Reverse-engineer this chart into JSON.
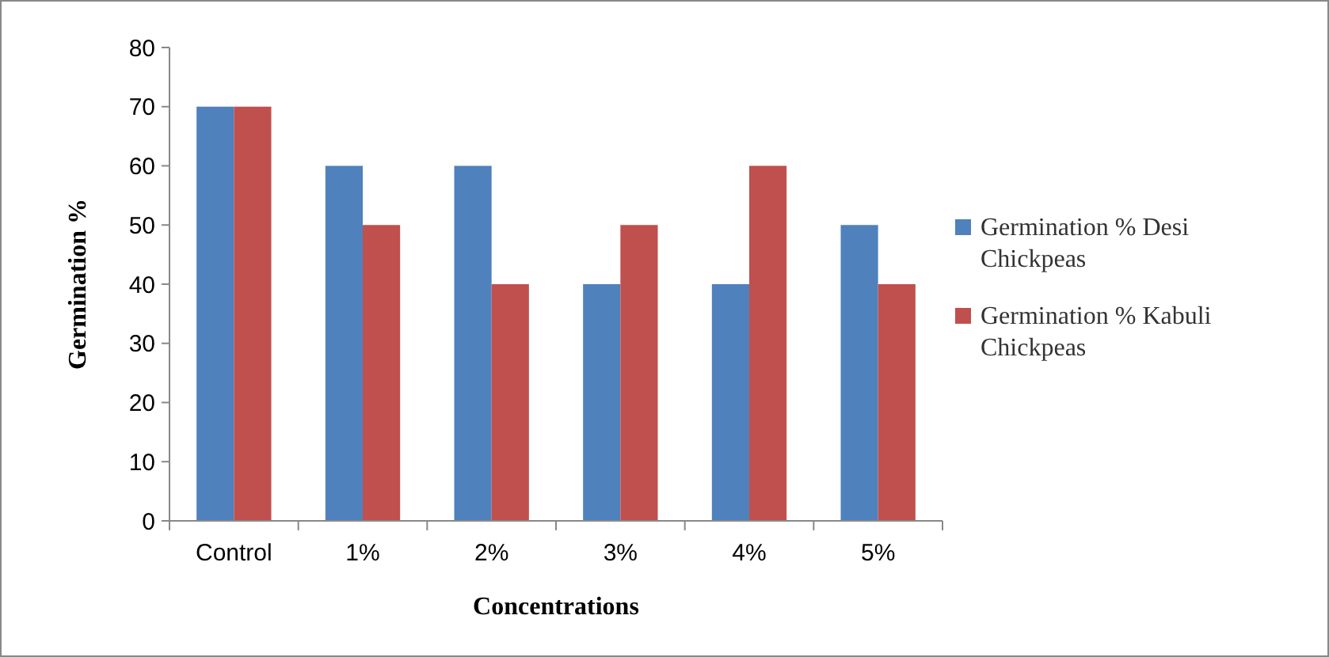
{
  "chart_data": {
    "type": "bar",
    "xlabel": "Concentrations",
    "ylabel": "Germination %",
    "categories": [
      "Control",
      "1%",
      "2%",
      "3%",
      "4%",
      "5%"
    ],
    "series": [
      {
        "name": "Germination % Desi Chickpeas",
        "color": "#4f81bd",
        "values": [
          70,
          60,
          60,
          40,
          40,
          50
        ]
      },
      {
        "name": "Germination % Kabuli Chickpeas",
        "color": "#c0504d",
        "values": [
          70,
          50,
          40,
          50,
          60,
          40
        ]
      }
    ],
    "ylim": [
      0,
      80
    ],
    "yticks": [
      0,
      10,
      20,
      30,
      40,
      50,
      60,
      70,
      80
    ],
    "grid": false,
    "legend": "right"
  }
}
